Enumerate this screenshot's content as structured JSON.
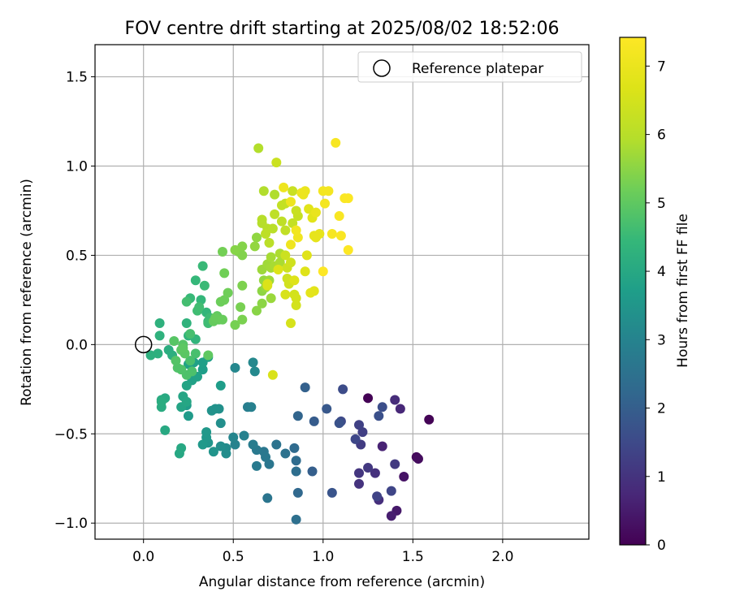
{
  "chart_data": {
    "type": "scatter",
    "title": "FOV centre drift starting at 2025/08/02 18:52:06",
    "xlabel": "Angular distance from reference (arcmin)",
    "ylabel": "Rotation from reference (arcmin)",
    "xlim": [
      -0.27,
      2.48
    ],
    "ylim": [
      -1.09,
      1.68
    ],
    "xticks": [
      0.0,
      0.5,
      1.0,
      1.5,
      2.0
    ],
    "yticks": [
      -1.0,
      -0.5,
      0.0,
      0.5,
      1.0,
      1.5
    ],
    "xtick_labels": [
      "0.0",
      "0.5",
      "1.0",
      "1.5",
      "2.0"
    ],
    "ytick_labels": [
      "−1.0",
      "−0.5",
      "0.0",
      "0.5",
      "1.0",
      "1.5"
    ],
    "grid": true,
    "legend": {
      "position": "top-right",
      "entries": [
        {
          "label": "Reference platepar",
          "marker": "open-circle"
        }
      ]
    },
    "reference_point": {
      "x": 0.0,
      "y": 0.0
    },
    "colorbar": {
      "label": "Hours from first FF file",
      "colormap": "viridis",
      "range": [
        0,
        7.42
      ],
      "ticks": [
        0,
        1,
        2,
        3,
        4,
        5,
        6,
        7
      ],
      "tick_labels": [
        "0",
        "1",
        "2",
        "3",
        "4",
        "5",
        "6",
        "7"
      ]
    },
    "series": [
      {
        "points": [
          [
            1.25,
            -0.3,
            0.02
          ],
          [
            1.59,
            -0.42,
            0.05
          ],
          [
            1.52,
            -0.63,
            0.15
          ],
          [
            1.53,
            -0.64,
            0.2
          ],
          [
            1.45,
            -0.74,
            0.35
          ],
          [
            1.41,
            -0.93,
            0.45
          ],
          [
            1.38,
            -0.96,
            0.55
          ],
          [
            1.33,
            -0.57,
            0.65
          ],
          [
            1.43,
            -0.36,
            0.75
          ],
          [
            1.4,
            -0.31,
            0.85
          ],
          [
            1.31,
            -0.87,
            0.9
          ],
          [
            1.29,
            -0.72,
            0.95
          ],
          [
            1.2,
            -0.78,
            1.0
          ],
          [
            1.2,
            -0.72,
            1.05
          ],
          [
            1.25,
            -0.69,
            1.1
          ],
          [
            1.4,
            -0.67,
            1.15
          ],
          [
            1.21,
            -0.56,
            1.2
          ],
          [
            1.22,
            -0.49,
            1.25
          ],
          [
            1.2,
            -0.45,
            1.3
          ],
          [
            1.3,
            -0.85,
            1.35
          ],
          [
            1.38,
            -0.82,
            1.4
          ],
          [
            1.18,
            -0.53,
            1.45
          ],
          [
            1.1,
            -0.43,
            1.5
          ],
          [
            1.11,
            -0.25,
            1.55
          ],
          [
            1.33,
            -0.35,
            1.6
          ],
          [
            1.31,
            -0.4,
            1.65
          ],
          [
            1.09,
            -0.44,
            1.7
          ],
          [
            1.05,
            -0.83,
            1.75
          ],
          [
            1.02,
            -0.36,
            1.85
          ],
          [
            0.95,
            -0.43,
            1.95
          ],
          [
            0.94,
            -0.71,
            2.0
          ],
          [
            0.9,
            -0.24,
            2.05
          ],
          [
            0.86,
            -0.4,
            2.15
          ],
          [
            0.86,
            -0.83,
            2.25
          ],
          [
            0.84,
            -0.58,
            2.3
          ],
          [
            0.85,
            -0.65,
            2.35
          ],
          [
            0.85,
            -0.71,
            2.4
          ],
          [
            0.85,
            -0.98,
            2.45
          ],
          [
            0.79,
            -0.61,
            2.5
          ],
          [
            0.74,
            -0.56,
            2.55
          ],
          [
            0.69,
            -0.86,
            2.6
          ],
          [
            0.7,
            -0.67,
            2.62
          ],
          [
            0.67,
            -0.6,
            2.65
          ],
          [
            0.68,
            -0.63,
            2.68
          ],
          [
            0.63,
            -0.59,
            2.72
          ],
          [
            0.63,
            -0.68,
            2.75
          ],
          [
            0.61,
            -0.56,
            2.8
          ],
          [
            0.58,
            -0.35,
            2.85
          ],
          [
            0.6,
            -0.35,
            2.9
          ],
          [
            0.56,
            -0.51,
            2.95
          ],
          [
            0.51,
            -0.56,
            3.0
          ],
          [
            0.5,
            -0.52,
            3.05
          ],
          [
            0.51,
            -0.13,
            3.1
          ],
          [
            0.61,
            -0.1,
            3.12
          ],
          [
            0.62,
            -0.15,
            3.15
          ],
          [
            0.46,
            -0.58,
            3.2
          ],
          [
            0.46,
            -0.61,
            3.25
          ],
          [
            0.43,
            -0.57,
            3.28
          ],
          [
            0.43,
            -0.44,
            3.3
          ],
          [
            0.42,
            -0.36,
            3.35
          ],
          [
            0.4,
            -0.36,
            3.38
          ],
          [
            0.38,
            -0.37,
            3.4
          ],
          [
            0.39,
            -0.6,
            3.45
          ],
          [
            0.36,
            -0.55,
            3.48
          ],
          [
            0.35,
            -0.52,
            3.52
          ],
          [
            0.35,
            -0.49,
            3.55
          ],
          [
            0.33,
            -0.56,
            3.58
          ],
          [
            0.25,
            -0.4,
            3.62
          ],
          [
            0.24,
            -0.34,
            3.65
          ],
          [
            0.43,
            -0.23,
            3.68
          ],
          [
            0.36,
            -0.07,
            3.7
          ],
          [
            0.33,
            -0.14,
            3.72
          ],
          [
            0.33,
            -0.1,
            3.75
          ],
          [
            0.28,
            -0.1,
            3.78
          ],
          [
            0.27,
            -0.2,
            3.8
          ],
          [
            0.3,
            -0.18,
            3.82
          ],
          [
            0.25,
            -0.11,
            3.85
          ],
          [
            0.24,
            -0.23,
            3.88
          ],
          [
            0.21,
            -0.35,
            3.9
          ],
          [
            0.22,
            -0.29,
            3.92
          ],
          [
            0.24,
            -0.32,
            3.95
          ],
          [
            0.2,
            -0.61,
            3.97
          ],
          [
            0.21,
            -0.58,
            4.0
          ],
          [
            0.12,
            -0.48,
            4.02
          ],
          [
            0.12,
            -0.3,
            4.05
          ],
          [
            0.1,
            -0.31,
            4.08
          ],
          [
            0.1,
            -0.35,
            4.1
          ],
          [
            0.1,
            -0.32,
            4.12
          ],
          [
            0.14,
            -0.03,
            4.15
          ],
          [
            0.16,
            -0.06,
            4.18
          ],
          [
            0.08,
            -0.05,
            4.2
          ],
          [
            0.04,
            -0.06,
            4.22
          ],
          [
            0.09,
            0.12,
            4.25
          ],
          [
            0.09,
            0.05,
            4.28
          ],
          [
            0.24,
            0.12,
            4.3
          ],
          [
            0.25,
            0.05,
            4.32
          ],
          [
            0.29,
            0.03,
            4.35
          ],
          [
            0.36,
            0.13,
            4.38
          ],
          [
            0.35,
            0.18,
            4.4
          ],
          [
            0.32,
            0.25,
            4.42
          ],
          [
            0.29,
            0.36,
            4.45
          ],
          [
            0.26,
            0.26,
            4.48
          ],
          [
            0.33,
            0.44,
            4.5
          ],
          [
            0.34,
            0.33,
            4.52
          ],
          [
            0.37,
            0.15,
            4.55
          ],
          [
            0.36,
            0.12,
            4.58
          ],
          [
            0.3,
            0.19,
            4.6
          ],
          [
            0.31,
            0.21,
            4.62
          ],
          [
            0.24,
            0.24,
            4.65
          ],
          [
            0.26,
            0.06,
            4.68
          ],
          [
            0.29,
            -0.05,
            4.7
          ],
          [
            0.26,
            -0.09,
            4.72
          ],
          [
            0.27,
            -0.15,
            4.75
          ],
          [
            0.24,
            -0.17,
            4.78
          ],
          [
            0.21,
            -0.14,
            4.8
          ],
          [
            0.19,
            -0.13,
            4.82
          ],
          [
            0.18,
            -0.09,
            4.85
          ],
          [
            0.22,
            0.0,
            4.88
          ],
          [
            0.17,
            0.02,
            4.9
          ],
          [
            0.21,
            -0.03,
            4.92
          ],
          [
            0.23,
            -0.05,
            4.95
          ],
          [
            0.22,
            -0.02,
            4.97
          ],
          [
            0.36,
            -0.06,
            5.0
          ],
          [
            0.41,
            0.16,
            5.02
          ],
          [
            0.42,
            0.14,
            5.05
          ],
          [
            0.39,
            0.13,
            5.08
          ],
          [
            0.4,
            0.15,
            5.1
          ],
          [
            0.44,
            0.14,
            5.12
          ],
          [
            0.43,
            0.24,
            5.15
          ],
          [
            0.45,
            0.25,
            5.18
          ],
          [
            0.47,
            0.29,
            5.2
          ],
          [
            0.45,
            0.4,
            5.22
          ],
          [
            0.44,
            0.52,
            5.25
          ],
          [
            0.51,
            0.11,
            5.28
          ],
          [
            0.54,
            0.21,
            5.3
          ],
          [
            0.55,
            0.14,
            5.32
          ],
          [
            0.55,
            0.33,
            5.35
          ],
          [
            0.53,
            0.52,
            5.38
          ],
          [
            0.55,
            0.5,
            5.4
          ],
          [
            0.55,
            0.55,
            5.42
          ],
          [
            0.51,
            0.53,
            5.45
          ],
          [
            0.63,
            0.19,
            5.48
          ],
          [
            0.66,
            0.23,
            5.5
          ],
          [
            0.66,
            0.3,
            5.52
          ],
          [
            0.63,
            0.6,
            5.55
          ],
          [
            0.62,
            0.55,
            5.58
          ],
          [
            0.67,
            0.36,
            5.6
          ],
          [
            0.68,
            0.32,
            5.62
          ],
          [
            0.71,
            0.26,
            5.65
          ],
          [
            0.66,
            0.42,
            5.68
          ],
          [
            0.7,
            0.36,
            5.7
          ],
          [
            0.69,
            0.45,
            5.72
          ],
          [
            0.71,
            0.43,
            5.75
          ],
          [
            0.71,
            0.49,
            5.78
          ],
          [
            0.73,
            0.44,
            5.8
          ],
          [
            0.76,
            0.46,
            5.82
          ],
          [
            0.76,
            0.51,
            5.85
          ],
          [
            0.73,
            0.84,
            5.88
          ],
          [
            0.67,
            0.86,
            5.9
          ],
          [
            0.64,
            1.1,
            5.92
          ],
          [
            0.66,
            0.68,
            5.95
          ],
          [
            0.66,
            0.7,
            5.98
          ],
          [
            0.69,
            0.65,
            6.0
          ],
          [
            0.72,
            0.65,
            6.02
          ],
          [
            0.7,
            0.57,
            6.05
          ],
          [
            0.68,
            0.62,
            6.08
          ],
          [
            0.73,
            0.73,
            6.1
          ],
          [
            0.77,
            0.69,
            6.12
          ],
          [
            0.79,
            0.64,
            6.15
          ],
          [
            0.77,
            0.78,
            6.18
          ],
          [
            0.79,
            0.79,
            6.2
          ],
          [
            0.83,
            0.68,
            6.22
          ],
          [
            0.86,
            0.72,
            6.25
          ],
          [
            0.85,
            0.75,
            6.28
          ],
          [
            0.83,
            0.86,
            6.3
          ],
          [
            0.74,
            1.02,
            6.32
          ],
          [
            0.79,
            0.5,
            6.35
          ],
          [
            0.8,
            0.43,
            6.38
          ],
          [
            0.8,
            0.37,
            6.4
          ],
          [
            0.82,
            0.46,
            6.42
          ],
          [
            0.81,
            0.34,
            6.45
          ],
          [
            0.84,
            0.28,
            6.48
          ],
          [
            0.85,
            0.22,
            6.5
          ],
          [
            0.85,
            0.26,
            6.52
          ],
          [
            0.82,
            0.12,
            6.55
          ],
          [
            0.79,
            0.28,
            6.58
          ],
          [
            0.72,
            -0.17,
            6.6
          ],
          [
            0.69,
            0.33,
            6.62
          ],
          [
            0.69,
            0.34,
            6.65
          ],
          [
            0.75,
            0.42,
            6.68
          ],
          [
            0.84,
            0.36,
            6.7
          ],
          [
            0.9,
            0.41,
            6.72
          ],
          [
            0.91,
            0.5,
            6.75
          ],
          [
            0.92,
            0.76,
            6.78
          ],
          [
            0.94,
            0.71,
            6.8
          ],
          [
            0.95,
            0.3,
            6.82
          ],
          [
            0.93,
            0.29,
            6.85
          ],
          [
            0.96,
            0.6,
            6.88
          ],
          [
            0.95,
            0.61,
            6.9
          ],
          [
            0.98,
            0.62,
            6.92
          ],
          [
            0.96,
            0.74,
            6.95
          ],
          [
            0.89,
            0.84,
            6.98
          ],
          [
            0.9,
            0.86,
            7.0
          ],
          [
            0.88,
            0.85,
            7.02
          ],
          [
            0.82,
            0.8,
            7.05
          ],
          [
            0.78,
            0.88,
            7.08
          ],
          [
            0.82,
            0.56,
            7.1
          ],
          [
            0.86,
            0.6,
            7.12
          ],
          [
            0.85,
            0.64,
            7.15
          ],
          [
            1.0,
            0.86,
            7.18
          ],
          [
            1.01,
            0.79,
            7.2
          ],
          [
            1.03,
            0.86,
            7.22
          ],
          [
            1.05,
            0.62,
            7.25
          ],
          [
            1.07,
            1.13,
            7.28
          ],
          [
            1.09,
            0.72,
            7.3
          ],
          [
            1.1,
            0.61,
            7.32
          ],
          [
            1.12,
            0.82,
            7.35
          ],
          [
            1.14,
            0.82,
            7.38
          ],
          [
            1.14,
            0.53,
            7.4
          ],
          [
            1.0,
            0.41,
            7.42
          ]
        ]
      }
    ]
  }
}
